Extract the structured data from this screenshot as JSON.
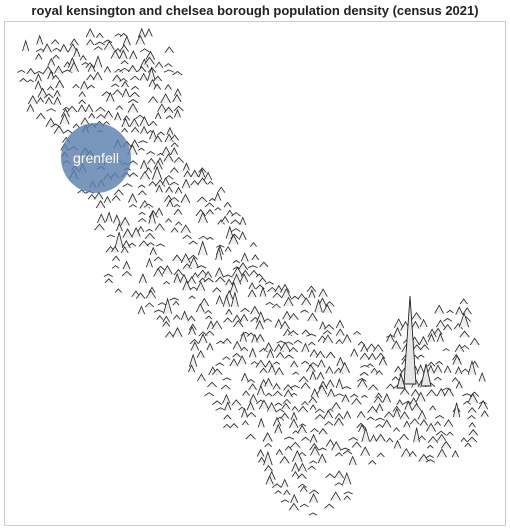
{
  "title": "royal kensington and chelsea borough population density (census 2021)",
  "callout": {
    "label": "grenfell",
    "color": "#5b7fae"
  },
  "colors": {
    "spike_stroke": "#222222",
    "spike_fill": "#eeeeee",
    "frame": "#cccccc"
  },
  "map": {
    "type": "spike-map",
    "measure": "population density",
    "highlight": "grenfell"
  }
}
